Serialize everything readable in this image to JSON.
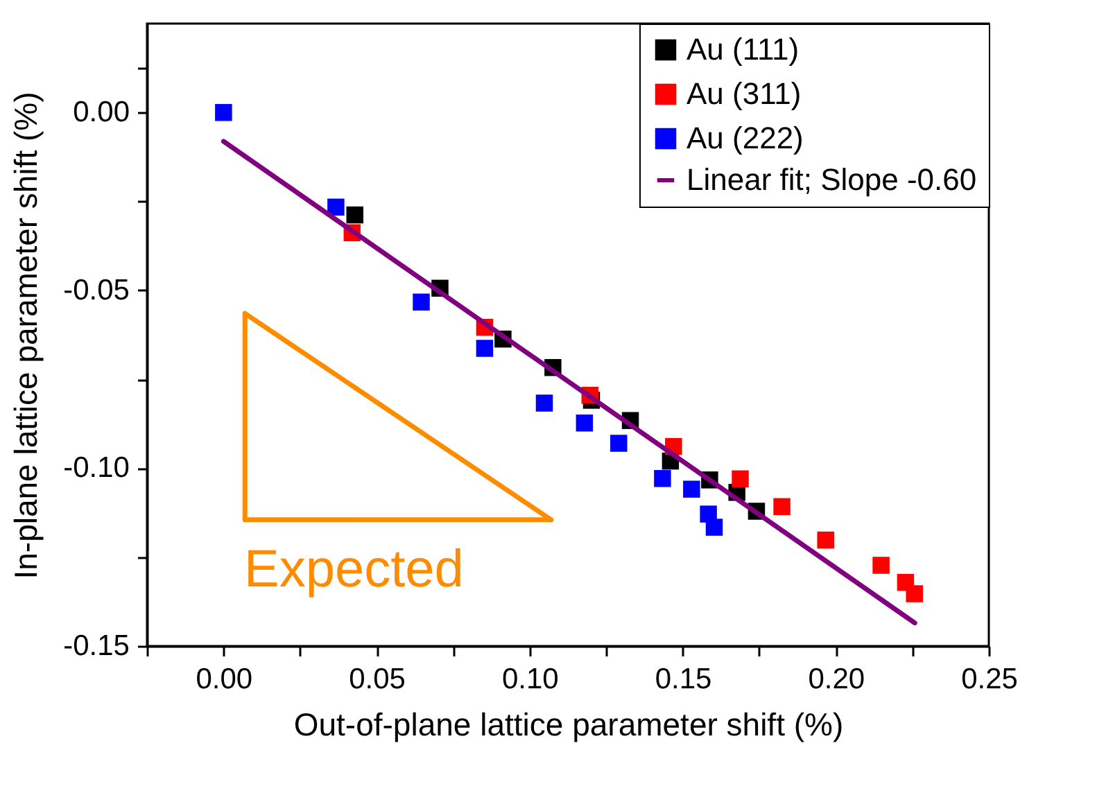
{
  "chart_data": {
    "type": "scatter",
    "xlabel": "Out-of-plane lattice parameter shift (%)",
    "ylabel": "In-plane lattice parameter shift (%)",
    "xlim": [
      -0.025,
      0.25
    ],
    "ylim": [
      -0.15,
      0.025
    ],
    "xticks": [
      {
        "value": -0.025,
        "label": null
      },
      {
        "value": 0,
        "label": "0.00"
      },
      {
        "value": 0.025,
        "label": null
      },
      {
        "value": 0.05,
        "label": "0.05"
      },
      {
        "value": 0.075,
        "label": null
      },
      {
        "value": 0.1,
        "label": "0.10"
      },
      {
        "value": 0.125,
        "label": null
      },
      {
        "value": 0.15,
        "label": "0.15"
      },
      {
        "value": 0.175,
        "label": null
      },
      {
        "value": 0.2,
        "label": "0.20"
      },
      {
        "value": 0.225,
        "label": null
      },
      {
        "value": 0.25,
        "label": "0.25"
      }
    ],
    "yticks": [
      {
        "value": -0.15,
        "label": "-0.15"
      },
      {
        "value": -0.125,
        "label": null
      },
      {
        "value": -0.1,
        "label": "-0.10"
      },
      {
        "value": -0.075,
        "label": null
      },
      {
        "value": -0.05,
        "label": "-0.05"
      },
      {
        "value": -0.025,
        "label": null
      },
      {
        "value": 0,
        "label": "0.00"
      },
      {
        "value": 0.0125,
        "label": null
      }
    ],
    "marker": "square",
    "legend": "top right",
    "grid": false,
    "annotations": [
      "Expected"
    ],
    "series": [
      {
        "name": "Au (111)",
        "color": "#000000",
        "x": [
          0.0429,
          0.0707,
          0.0913,
          0.1076,
          0.1202,
          0.1329,
          0.146,
          0.1588,
          0.1677,
          0.1741
        ],
        "values": [
          -0.0288,
          -0.0494,
          -0.0637,
          -0.0717,
          -0.0809,
          -0.0866,
          -0.098,
          -0.1033,
          -0.1068,
          -0.1121
        ]
      },
      {
        "name": "Au (311)",
        "color": "#ff0000",
        "x": [
          0.042,
          0.0853,
          0.1197,
          0.147,
          0.1688,
          0.1824,
          0.1967,
          0.2148,
          0.2228,
          0.2257
        ],
        "values": [
          -0.0338,
          -0.0604,
          -0.0795,
          -0.0939,
          -0.103,
          -0.1108,
          -0.1202,
          -0.1273,
          -0.1321,
          -0.1353
        ]
      },
      {
        "name": "Au (222)",
        "color": "#0000ff",
        "x": [
          0,
          0.0367,
          0.0646,
          0.0853,
          0.1048,
          0.1179,
          0.1291,
          0.1434,
          0.1529,
          0.1584,
          0.1603
        ],
        "values": [
          0,
          -0.0266,
          -0.0533,
          -0.0663,
          -0.0817,
          -0.0873,
          -0.093,
          -0.1029,
          -0.1059,
          -0.1129,
          -0.1166
        ]
      },
      {
        "name": "Linear fit; Slope -0.60",
        "type": "line",
        "marker": "none",
        "color": "#800080",
        "x": [
          0,
          0.2258
        ],
        "values": [
          -0.0081,
          -0.1435
        ]
      },
      {
        "type": "line",
        "marker": "none",
        "color": "#ff8c00",
        "x": [
          0.007,
          0.107
        ],
        "values": [
          -0.0565,
          -0.1145
        ]
      },
      {
        "type": "line",
        "marker": "none",
        "color": "#ff8c00",
        "x": [
          0.007,
          0.107
        ],
        "values": [
          -0.1145,
          -0.1145
        ]
      },
      {
        "type": "line",
        "marker": "none",
        "color": "#ff8c00",
        "x": [
          0.007,
          0.007
        ],
        "values": [
          -0.0565,
          -0.1145
        ]
      }
    ]
  }
}
